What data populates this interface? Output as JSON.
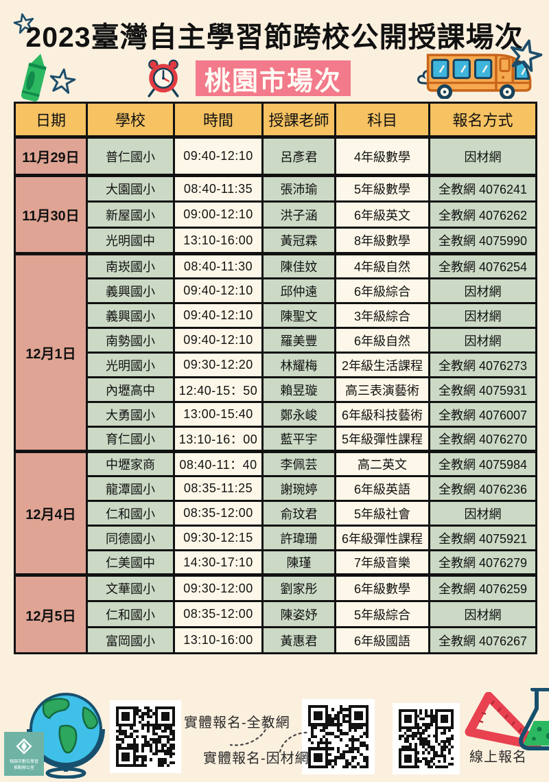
{
  "header": {
    "title": "2023臺灣自主學習節跨校公開授課場次",
    "location_badge": "桃園市場次"
  },
  "table": {
    "columns": [
      "日期",
      "學校",
      "時間",
      "授課老師",
      "科目",
      "報名方式"
    ],
    "groups": [
      {
        "date": "11月29日",
        "rows": [
          [
            "普仁國小",
            "09:40-12:10",
            "呂彥君",
            "4年級數學",
            "因材網"
          ]
        ]
      },
      {
        "date": "11月30日",
        "rows": [
          [
            "大園國小",
            "08:40-11:35",
            "張沛瑜",
            "5年級數學",
            "全教網 4076241"
          ],
          [
            "新屋國小",
            "09:00-12:10",
            "洪子涵",
            "6年級英文",
            "全教網 4076262"
          ],
          [
            "光明國中",
            "13:10-16:00",
            "黃冠霖",
            "8年級數學",
            "全教網 4075990"
          ]
        ]
      },
      {
        "date": "12月1日",
        "rows": [
          [
            "南崁國小",
            "08:40-11:30",
            "陳佳妏",
            "4年級自然",
            "全教網 4076254"
          ],
          [
            "義興國小",
            "09:40-12:10",
            "邱仲遠",
            "6年級綜合",
            "因材網"
          ],
          [
            "義興國小",
            "09:40-12:10",
            "陳聖文",
            "3年級綜合",
            "因材網"
          ],
          [
            "南勢國小",
            "09:40-12:10",
            "羅美豐",
            "6年級自然",
            "因材網"
          ],
          [
            "光明國小",
            "09:30-12:20",
            "林耀梅",
            "2年級生活課程",
            "全教網 4076273"
          ],
          [
            "內壢高中",
            "12:40-15：50",
            "賴昱璇",
            "高三表演藝術",
            "全教網 4075931"
          ],
          [
            "大勇國小",
            "13:00-15:40",
            "鄭永峻",
            "6年級科技藝術",
            "全教網 4076007"
          ],
          [
            "育仁國小",
            "13:10-16：00",
            "藍平宇",
            "5年級彈性課程",
            "全教網 4076270"
          ]
        ]
      },
      {
        "date": "12月4日",
        "rows": [
          [
            "中壢家商",
            "08:40-11：40",
            "李佩芸",
            "高二英文",
            "全教網 4075984"
          ],
          [
            "龍潭國小",
            "08:35-11:25",
            "謝琬婷",
            "6年級英語",
            "全教網 4076236"
          ],
          [
            "仁和國小",
            "08:35-12:00",
            "俞玟君",
            "5年級社會",
            "因材網"
          ],
          [
            "同德國小",
            "09:30-12:15",
            "許瑋珊",
            "6年級彈性課程",
            "全教網 4075921"
          ],
          [
            "仁美國中",
            "14:30-17:10",
            "陳瑾",
            "7年級音樂",
            "全教網 4076279"
          ]
        ]
      },
      {
        "date": "12月5日",
        "rows": [
          [
            "文華國小",
            "09:30-12:00",
            "劉家彤",
            "6年級數學",
            "全教網 4076259"
          ],
          [
            "仁和國小",
            "08:35-12:00",
            "陳姿妤",
            "5年級綜合",
            "因材網"
          ],
          [
            "富岡國小",
            "13:10-16:00",
            "黃惠君",
            "6年級國語",
            "全教網 4076267"
          ]
        ]
      }
    ]
  },
  "footer": {
    "qr1_label": "實體報名-全教網",
    "qr2_label": "實體報名-因材網",
    "qr3_label": "線上報名",
    "org_badge_line1": "桃園市數位學習",
    "org_badge_line2": "推動辦公室"
  },
  "icons": {
    "decorations": [
      "star-icon",
      "crayon-icon",
      "alarm-clock-icon",
      "school-bus-icon",
      "globe-icon",
      "qr-code",
      "triangle-ruler-icon",
      "flask-icon",
      "dashed-arrow-icon",
      "diamond-logo-icon"
    ]
  },
  "colors": {
    "page_bg": "#FBF0DE",
    "header_orange": "#F6C262",
    "date_pink": "#DFA493",
    "cell_green": "#CBD9C5",
    "cell_cream": "#FCF7E8",
    "badge_pink": "#F27A8A",
    "navy": "#1D4E6B",
    "crayon_green": "#2CB861",
    "alarm_red": "#E23C42",
    "bus_orange": "#F6A94F",
    "window_blue": "#3FB5DC",
    "teal_badge": "#6FB3A4",
    "ruler_red": "#E8414F",
    "border_black": "#111111"
  }
}
